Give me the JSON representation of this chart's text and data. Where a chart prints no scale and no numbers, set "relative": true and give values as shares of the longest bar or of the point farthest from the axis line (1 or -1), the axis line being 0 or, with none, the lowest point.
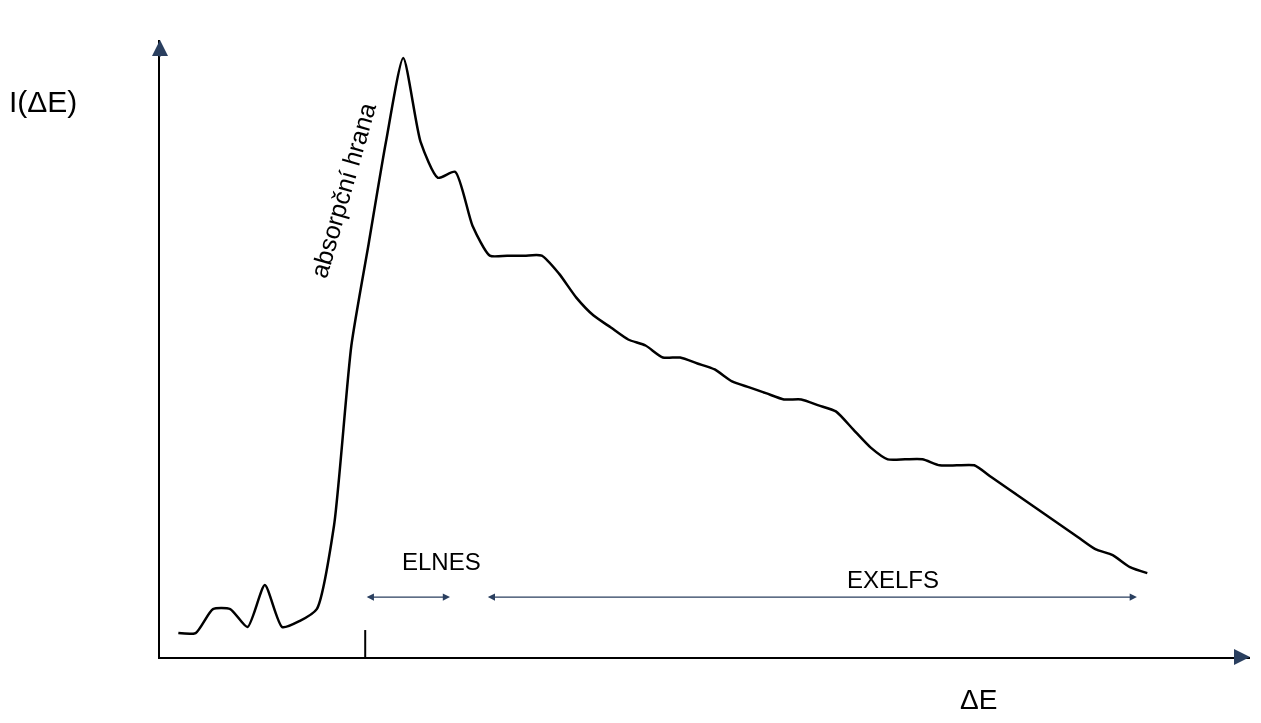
{
  "chart_data": {
    "type": "line",
    "relative": true,
    "xlabel": "ΔE",
    "ylabel": "I(ΔE)",
    "color": "#000000",
    "categories": [
      null,
      null,
      null,
      null,
      null,
      null,
      null,
      null,
      null,
      null,
      null,
      null,
      null,
      null,
      null,
      null,
      null,
      null,
      null,
      null,
      null,
      null,
      null,
      null,
      null,
      null,
      null,
      null,
      null,
      null,
      null,
      null,
      null,
      null,
      null,
      null,
      null,
      null,
      null,
      null,
      null,
      null,
      null,
      null,
      null,
      null,
      null,
      null,
      null,
      null,
      null,
      null,
      null,
      null,
      null,
      null,
      null
    ],
    "values": [
      0.04,
      0.04,
      0.08,
      0.08,
      0.05,
      0.12,
      0.05,
      0.06,
      0.08,
      0.22,
      0.52,
      0.69,
      0.86,
      1,
      0.86,
      0.8,
      0.81,
      0.72,
      0.67,
      0.67,
      0.67,
      0.67,
      0.64,
      0.6,
      0.57,
      0.55,
      0.53,
      0.52,
      0.5,
      0.5,
      0.49,
      0.48,
      0.46,
      0.45,
      0.44,
      0.43,
      0.43,
      0.42,
      0.41,
      0.38,
      0.35,
      0.33,
      0.33,
      0.33,
      0.32,
      0.32,
      0.32,
      0.3,
      0.28,
      0.26,
      0.24,
      0.22,
      0.2,
      0.18,
      0.17,
      0.15,
      0.14
    ],
    "annotations": [
      "absorpční hrana",
      "ELNES",
      "EXELFS"
    ]
  }
}
